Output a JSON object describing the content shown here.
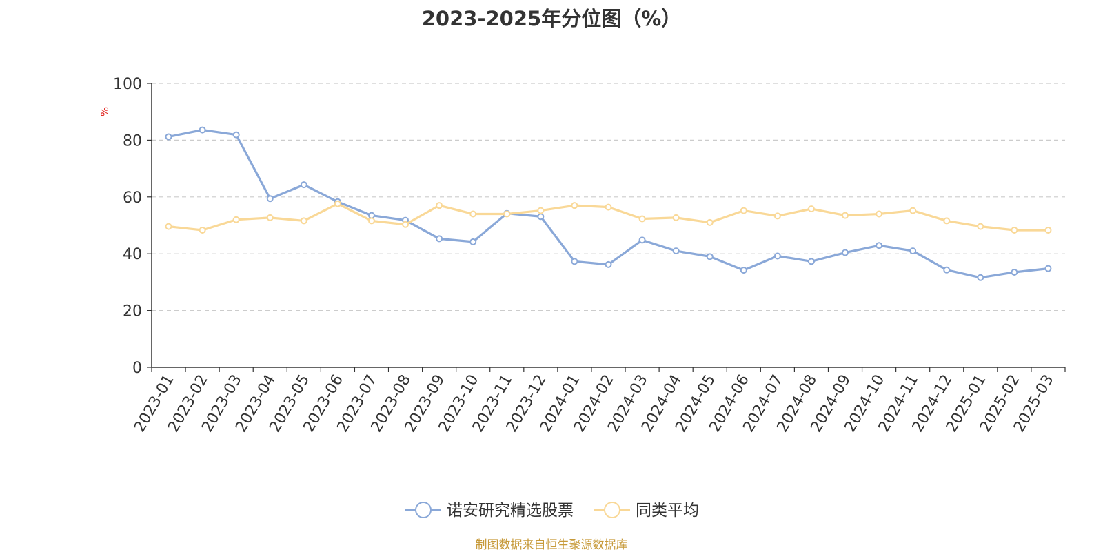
{
  "chart_data": {
    "type": "line",
    "title": "2023-2025年分位图（%）",
    "ylabel": "%",
    "ylim": [
      0,
      100
    ],
    "yticks": [
      "0",
      "20",
      "40",
      "60",
      "80",
      "100"
    ],
    "grid": "horizontal-dashed",
    "legend_position": "bottom",
    "categories": [
      "2023-01",
      "2023-02",
      "2023-03",
      "2023-04",
      "2023-05",
      "2023-06",
      "2023-07",
      "2023-08",
      "2023-09",
      "2023-10",
      "2023-11",
      "2023-12",
      "2024-01",
      "2024-02",
      "2024-03",
      "2024-04",
      "2024-05",
      "2024-06",
      "2024-07",
      "2024-08",
      "2024-09",
      "2024-10",
      "2024-11",
      "2024-12",
      "2025-01",
      "2025-02",
      "2025-03"
    ],
    "series": [
      {
        "name": "诺安研究精选股票",
        "color": "#8aa8d8",
        "values": [
          81.2,
          83.6,
          81.9,
          59.4,
          64.3,
          58.3,
          53.5,
          51.8,
          45.3,
          44.2,
          54.2,
          53.1,
          37.3,
          36.2,
          44.8,
          41.0,
          39.0,
          34.2,
          39.2,
          37.3,
          40.4,
          42.9,
          41.0,
          34.3,
          31.6,
          33.5,
          34.8
        ]
      },
      {
        "name": "同类平均",
        "color": "#f9d897",
        "values": [
          49.6,
          48.3,
          52.0,
          52.7,
          51.6,
          57.6,
          51.6,
          50.3,
          57.0,
          54.0,
          54.0,
          55.2,
          57.0,
          56.4,
          52.3,
          52.7,
          51.0,
          55.2,
          53.3,
          55.8,
          53.5,
          54.0,
          55.2,
          51.6,
          49.6,
          48.3,
          48.3
        ]
      }
    ]
  },
  "footer": {
    "source": "制图数据来自恒生聚源数据库"
  }
}
